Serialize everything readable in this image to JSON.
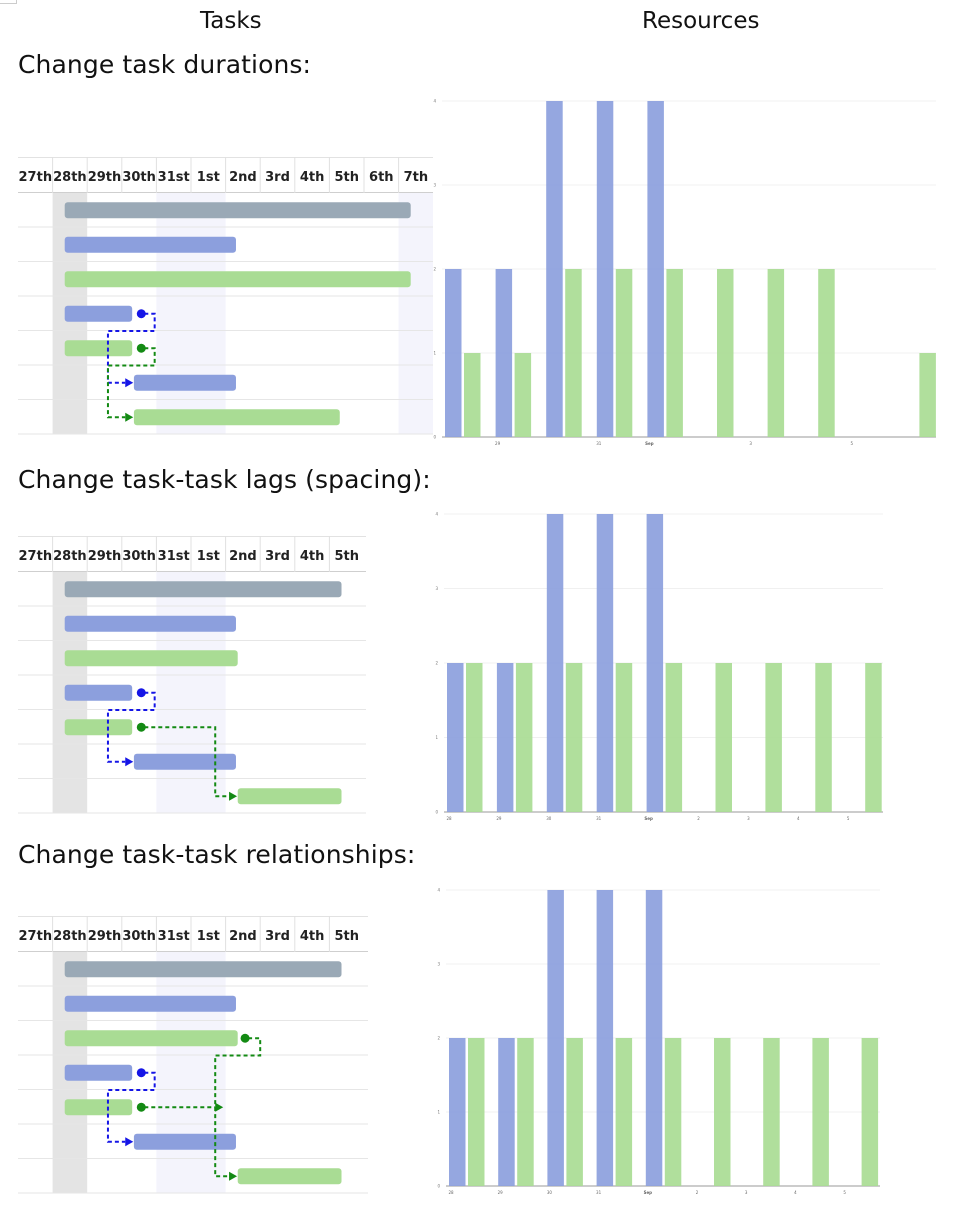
{
  "headers": {
    "tasks": "Tasks",
    "resources": "Resources"
  },
  "colors": {
    "blue": "#8c9fdd",
    "green": "#a9dc94",
    "gray": "#9aa9b6",
    "blue_line": "#1515e6",
    "green_line": "#138a13",
    "weekend": "#e4e4e4",
    "light": "#f4f4fc"
  },
  "sections": [
    {
      "title": "Change task durations:",
      "gantt": {
        "days": [
          "27th",
          "28th",
          "29th",
          "30th",
          "31st",
          "1st",
          "2nd",
          "3rd",
          "4th",
          "5th",
          "6th",
          "7th"
        ]
      },
      "chart_data": {
        "type": "bar",
        "categories": [
          "28",
          "29",
          "30",
          "31",
          "Sep",
          "2",
          "3",
          "4",
          "5",
          "6",
          "7"
        ],
        "x_tick_labels": [
          "29",
          "31",
          "Sep",
          "3",
          "5"
        ],
        "ylim": [
          0,
          4
        ],
        "y_ticks": [
          "0",
          "1",
          "2",
          "3",
          "4"
        ],
        "series": [
          {
            "values": [
              2,
              2,
              4,
              4,
              4,
              0,
              0,
              0,
              0,
              0,
              0
            ]
          },
          {
            "values": [
              1,
              1,
              2,
              2,
              2,
              2,
              2,
              2,
              0,
              1,
              1
            ]
          }
        ],
        "grid": true
      }
    },
    {
      "title": "Change task-task lags (spacing):",
      "gantt": {
        "days": [
          "27th",
          "28th",
          "29th",
          "30th",
          "31st",
          "1st",
          "2nd",
          "3rd",
          "4th",
          "5th"
        ]
      },
      "chart_data": {
        "type": "bar",
        "categories": [
          "28",
          "29",
          "30",
          "31",
          "Sep",
          "2",
          "3",
          "4",
          "5"
        ],
        "x_tick_labels": [
          "28",
          "29",
          "30",
          "31",
          "Sep",
          "2",
          "3",
          "4",
          "5"
        ],
        "ylim": [
          0,
          4
        ],
        "y_ticks": [
          "0",
          "1",
          "2",
          "3",
          "4"
        ],
        "series": [
          {
            "values": [
              2,
              2,
              4,
              4,
              4,
              0,
              0,
              0,
              0
            ]
          },
          {
            "values": [
              2,
              2,
              2,
              2,
              2,
              2,
              2,
              2,
              2
            ]
          }
        ],
        "grid": true
      }
    },
    {
      "title": "Change task-task relationships:",
      "gantt": {
        "days": [
          "27th",
          "28th",
          "29th",
          "30th",
          "31st",
          "1st",
          "2nd",
          "3rd",
          "4th",
          "5th"
        ]
      },
      "chart_data": {
        "type": "bar",
        "categories": [
          "28",
          "29",
          "30",
          "31",
          "Sep",
          "2",
          "3",
          "4",
          "5"
        ],
        "x_tick_labels": [
          "28",
          "29",
          "30",
          "31",
          "Sep",
          "2",
          "3",
          "4",
          "5"
        ],
        "ylim": [
          0,
          4
        ],
        "y_ticks": [
          "0",
          "1",
          "2",
          "3",
          "4"
        ],
        "series": [
          {
            "values": [
              2,
              2,
              4,
              4,
              4,
              0,
              0,
              0,
              0
            ]
          },
          {
            "values": [
              2,
              2,
              2,
              2,
              2,
              2,
              2,
              2,
              2
            ]
          }
        ],
        "grid": true
      }
    }
  ]
}
